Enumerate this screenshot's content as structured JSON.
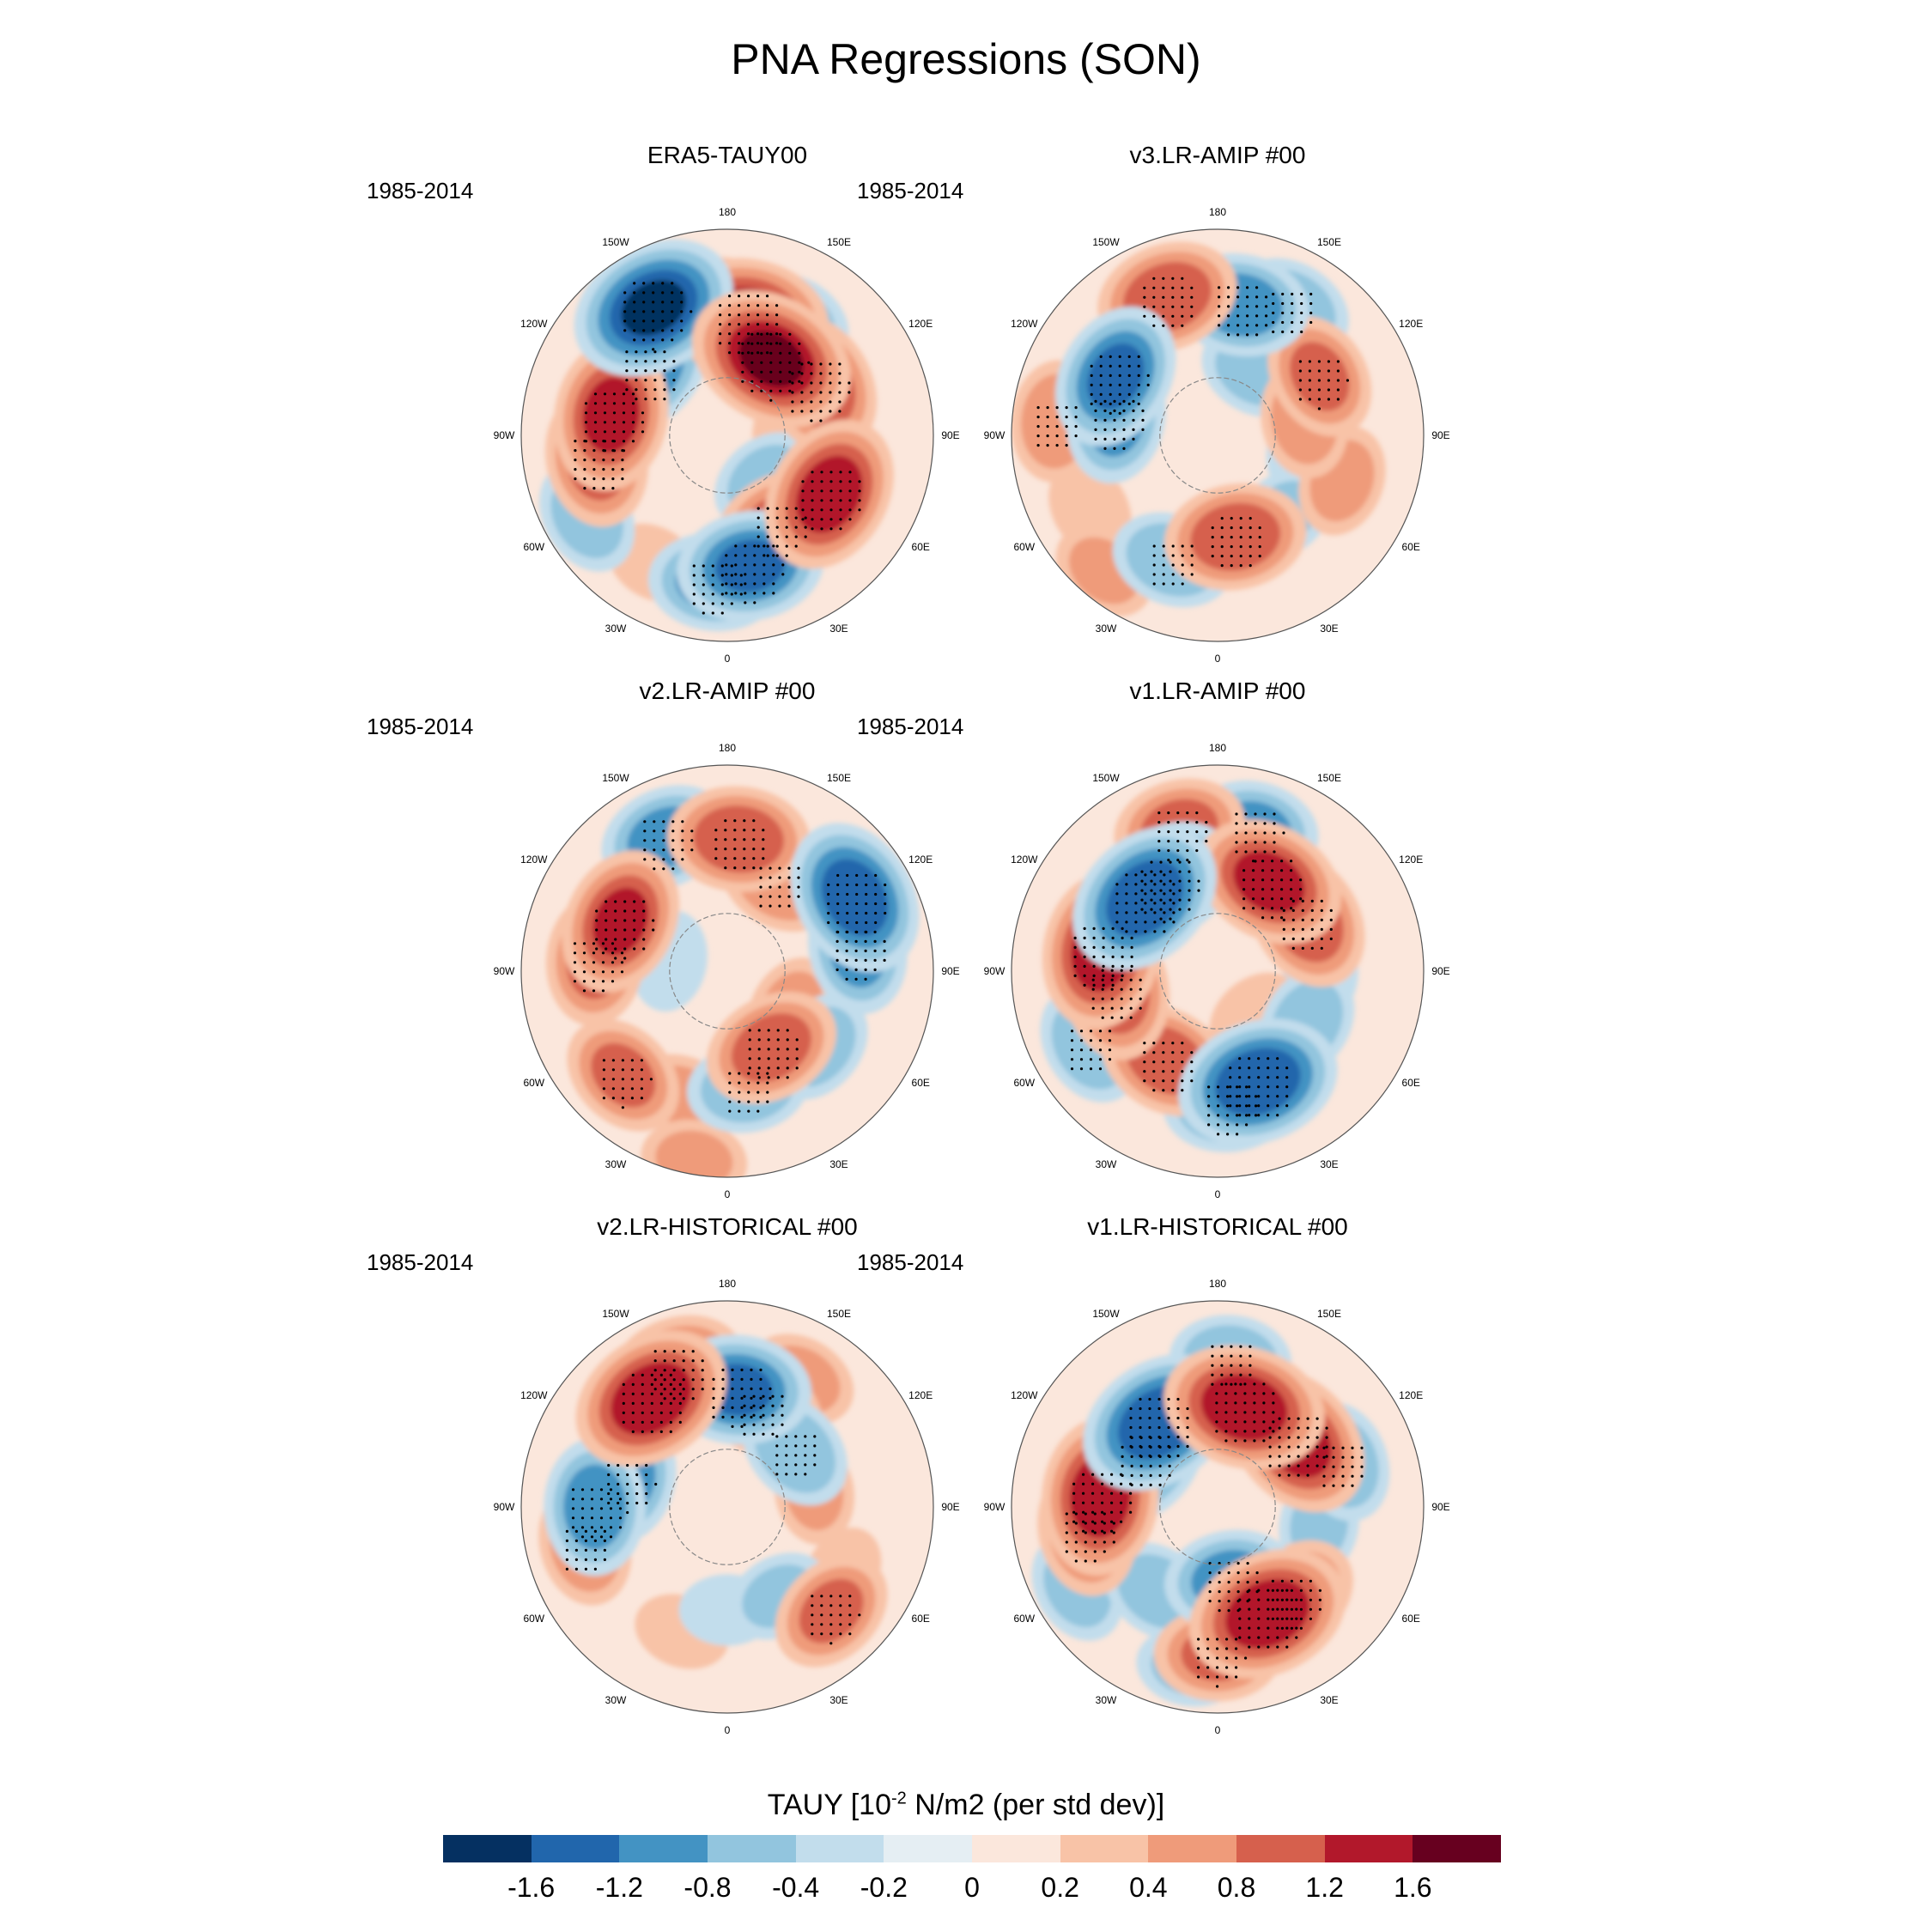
{
  "title": "PNA Regressions (SON)",
  "colorbar": {
    "title_prefix": "TAUY [10",
    "title_exp": "-2",
    "title_suffix": " N/m2 (per std dev)]",
    "colors": [
      "#053061",
      "#2166ac",
      "#4393c3",
      "#92c5de",
      "#c2ddec",
      "#e5eef3",
      "#fbe7dc",
      "#f8c3a7",
      "#ef9b7a",
      "#d6604d",
      "#b2182b",
      "#67001f"
    ],
    "ticks": [
      "-1.6",
      "-1.2",
      "-0.8",
      "-0.4",
      "-0.2",
      "0",
      "0.2",
      "0.4",
      "0.8",
      "1.2",
      "1.6"
    ]
  },
  "lon_labels": [
    "180",
    "150E",
    "120E",
    "90E",
    "60E",
    "30E",
    "0",
    "30W",
    "60W",
    "90W",
    "120W",
    "150W"
  ],
  "chart_data": {
    "type": "heatmap",
    "projection": "north polar stereographic",
    "variable": "TAUY",
    "units": "10^-2 N/m2 (per std dev)",
    "levels": [
      -1.6,
      -1.2,
      -0.8,
      -0.4,
      -0.2,
      0,
      0.2,
      0.4,
      0.8,
      1.2,
      1.6
    ],
    "panels": [
      {
        "title": "ERA5-TAUY00",
        "period": "1985-2014",
        "features": [
          [
            -150,
            40,
            -1.9
          ],
          [
            -130,
            55,
            -1.3
          ],
          [
            150,
            45,
            -0.9
          ],
          [
            -175,
            42,
            0.6
          ],
          [
            170,
            50,
            1.8
          ],
          [
            150,
            60,
            1.9
          ],
          [
            120,
            55,
            1.5
          ],
          [
            -100,
            50,
            1.6
          ],
          [
            -80,
            45,
            1.3
          ],
          [
            -60,
            35,
            -0.9
          ],
          [
            -30,
            40,
            0.5
          ],
          [
            60,
            50,
            1.7
          ],
          [
            30,
            55,
            1.2
          ],
          [
            10,
            45,
            -1.5
          ],
          [
            -5,
            40,
            -1.2
          ],
          [
            40,
            70,
            -0.8
          ],
          [
            90,
            70,
            0.4
          ]
        ]
      },
      {
        "title": "v3.LR-AMIP  #00",
        "period": "1985-2014",
        "features": [
          [
            -160,
            40,
            1.4
          ],
          [
            170,
            45,
            -1.3
          ],
          [
            150,
            40,
            -1.0
          ],
          [
            -120,
            50,
            -1.5
          ],
          [
            -100,
            55,
            -1.2
          ],
          [
            120,
            50,
            1.1
          ],
          [
            100,
            60,
            0.9
          ],
          [
            -95,
            35,
            1.0
          ],
          [
            -60,
            40,
            0.6
          ],
          [
            -20,
            45,
            -1.0
          ],
          [
            10,
            55,
            1.4
          ],
          [
            40,
            55,
            -0.7
          ],
          [
            70,
            45,
            0.8
          ],
          [
            80,
            60,
            -0.6
          ],
          [
            -40,
            30,
            0.7
          ],
          [
            150,
            65,
            -0.8
          ]
        ]
      },
      {
        "title": "v2.LR-AMIP  #00",
        "period": "1985-2014",
        "features": [
          [
            -155,
            40,
            -1.2
          ],
          [
            175,
            45,
            1.4
          ],
          [
            -115,
            50,
            1.5
          ],
          [
            -95,
            45,
            1.2
          ],
          [
            150,
            55,
            1.0
          ],
          [
            120,
            40,
            -1.7
          ],
          [
            100,
            45,
            -1.2
          ],
          [
            50,
            50,
            -0.9
          ],
          [
            30,
            60,
            1.3
          ],
          [
            -45,
            40,
            1.1
          ],
          [
            -20,
            45,
            0.7
          ],
          [
            10,
            50,
            -1.0
          ],
          [
            -100,
            70,
            -0.6
          ],
          [
            60,
            65,
            0.7
          ],
          [
            -10,
            25,
            0.7
          ]
        ]
      },
      {
        "title": "v1.LR-AMIP  #00",
        "period": "1985-2014",
        "features": [
          [
            -165,
            40,
            1.2
          ],
          [
            165,
            40,
            -1.1
          ],
          [
            -135,
            55,
            -1.8
          ],
          [
            -150,
            55,
            -1.5
          ],
          [
            150,
            55,
            1.6
          ],
          [
            120,
            55,
            1.4
          ],
          [
            -100,
            50,
            1.7
          ],
          [
            -80,
            55,
            1.4
          ],
          [
            -60,
            40,
            -1.0
          ],
          [
            -30,
            55,
            1.3
          ],
          [
            20,
            50,
            -1.8
          ],
          [
            5,
            45,
            -1.2
          ],
          [
            60,
            55,
            -0.9
          ],
          [
            90,
            55,
            -0.6
          ],
          [
            40,
            70,
            0.6
          ]
        ]
      },
      {
        "title": "v2.LR-HISTORICAL  #00",
        "period": "1985-2014",
        "features": [
          [
            -145,
            45,
            1.8
          ],
          [
            -160,
            40,
            1.3
          ],
          [
            175,
            50,
            -1.5
          ],
          [
            160,
            55,
            1.0
          ],
          [
            150,
            40,
            0.8
          ],
          [
            -105,
            55,
            -1.1
          ],
          [
            -90,
            45,
            -1.3
          ],
          [
            -75,
            40,
            1.0
          ],
          [
            130,
            60,
            -1.0
          ],
          [
            100,
            60,
            0.7
          ],
          [
            30,
            55,
            -0.7
          ],
          [
            45,
            40,
            1.1
          ],
          [
            60,
            45,
            0.5
          ],
          [
            -20,
            45,
            0.5
          ],
          [
            0,
            55,
            -0.5
          ]
        ]
      },
      {
        "title": "v1.LR-HISTORICAL  #00",
        "period": "1985-2014",
        "features": [
          [
            175,
            40,
            -1.0
          ],
          [
            -145,
            55,
            -1.8
          ],
          [
            -125,
            60,
            -1.4
          ],
          [
            165,
            55,
            1.8
          ],
          [
            130,
            55,
            1.7
          ],
          [
            110,
            45,
            -1.0
          ],
          [
            -95,
            50,
            1.7
          ],
          [
            -80,
            45,
            1.2
          ],
          [
            -60,
            35,
            -0.8
          ],
          [
            -35,
            55,
            -0.9
          ],
          [
            0,
            40,
            1.1
          ],
          [
            25,
            50,
            1.8
          ],
          [
            40,
            50,
            1.2
          ],
          [
            10,
            65,
            -1.2
          ],
          [
            -10,
            35,
            -0.7
          ],
          [
            80,
            55,
            -0.7
          ]
        ]
      }
    ]
  }
}
